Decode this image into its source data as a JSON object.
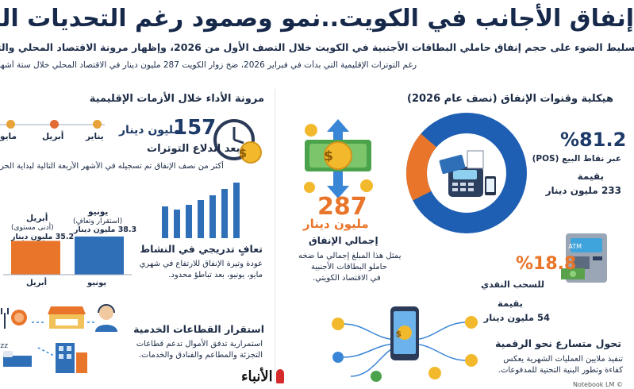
{
  "header": {
    "title": "إنفاق الأجانب في الكويت..نمو وصمود رغم التحديات الجيوسيا",
    "subtitle_line1": "تسليط الضوء على حجم إنفاق حاملي البطاقات الأجنبية في الكويت خلال النصف الأول من 2026، وإظهار مرونة الاقتصاد المحلي والتح",
    "subtitle_line2": "رغم التوترات الإقليمية التي بدأت في فبراير 2026، ضخ زوار الكويت 287 مليون دينار في الاقتصاد المحلي خلال ستة أشهر."
  },
  "right_section": {
    "heading": "هيكلية وقنوات الإنفاق (نصف عام 2026)",
    "pos": {
      "percent": "%81.2",
      "label": "عبر نقاط البيع (POS)",
      "value_label": "بقيمة",
      "value": "233 مليون دينار",
      "share": 81.2
    },
    "atm": {
      "percent": "%18.8",
      "label": "للسحب النقدي",
      "value_label": "بقيمة",
      "value": "54 مليون دينار",
      "share": 18.8
    },
    "total": {
      "number": "287",
      "unit": "مليون دينار",
      "label": "إجمالي الإنفاق",
      "desc1": "يمثل هذا المبلغ إجمالي ما ضخه",
      "desc2": "حاملو البطاقات الأجنبية",
      "desc3": "في الاقتصاد الكويتي."
    },
    "digital": {
      "title": "تحول متسارع نحو الرقمية",
      "desc1": "تنفيذ ملايين العمليات الشهرية يعكس",
      "desc2": "كفاءة وتطور البنية التحتية للمدفوعات."
    },
    "colors": {
      "pos": "#1e5fb3",
      "atm": "#e8752a"
    }
  },
  "left_section": {
    "heading": "مرونة الأداء خلال الأزمات الإقليمية",
    "timeline": [
      "يناير",
      "أبريل",
      "مايو"
    ],
    "first_months": {
      "number": "157",
      "unit": "مليون دينار",
      "label": "بعد اندلاع التوترات",
      "desc": "أكثر من نصف الإنفاق تم تسجيله في الأشهر الأربعة التالية لبداية الحر"
    },
    "recovery": {
      "title": "تعافٍ تدريجي في النشاط",
      "desc1": "عودة وتيرة الإنفاق للارتفاع في شهري",
      "desc2": "مايو، يونيو، بعد تباطؤ محدود."
    },
    "bars": [
      {
        "label": "يونيو",
        "annotation": "(استقرار وتعافٍ)",
        "value_text": "38.3 مليون دينار",
        "value": 38.3,
        "title": "يونيو"
      },
      {
        "label": "أبريل",
        "annotation": "(أدنى مستوى)",
        "value_text": "35.2 مليون دينار",
        "value": 35.2,
        "title": "أبريل"
      }
    ],
    "sectors": {
      "title": "استقرار القطاعات الخدمية",
      "desc1": "استمرارية تدفق الأموال تدعم قطاعات",
      "desc2": "التجزئة والمطاعم والفنادق والخدمات."
    }
  },
  "footer": {
    "logo": "الأنباء",
    "credit": "Notebook LM ©"
  }
}
